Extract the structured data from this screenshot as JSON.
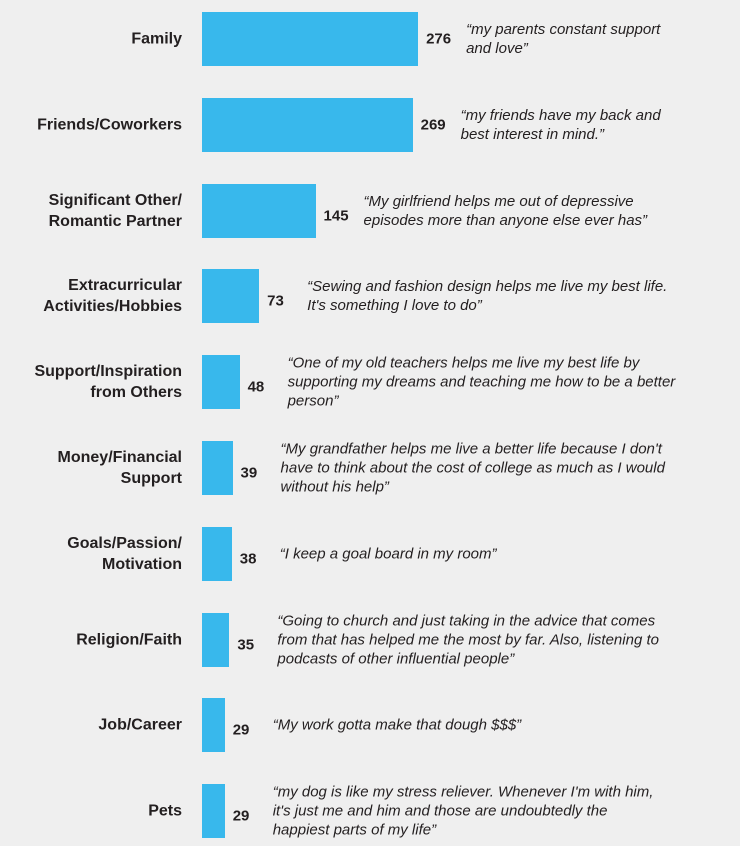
{
  "chart_data": {
    "type": "bar",
    "orientation": "horizontal",
    "color": "#38b8ec",
    "categories": [
      "Family",
      "Friends/Coworkers",
      "Significant Other/\nRomantic Partner",
      "Extracurricular\nActivities/Hobbies",
      "Support/Inspiration\nfrom Others",
      "Money/Financial\nSupport",
      "Goals/Passion/\nMotivation",
      "Religion/Faith",
      "Job/Career",
      "Pets"
    ],
    "values": [
      276,
      269,
      145,
      73,
      48,
      39,
      38,
      35,
      29,
      29
    ],
    "annotations": [
      "“my parents constant support\nand love”",
      "“my friends have my back and\nbest interest in mind.”",
      "“My girlfriend helps me out of depressive\nepisodes more than anyone else ever has”",
      "“Sewing and fashion design helps me live my best life.\nIt's something I love to do”",
      "“One of my old teachers helps me live my best life by\nsupporting my dreams and teaching me how to be a better\nperson”",
      "“My grandfather helps me live a better life because I don't\nhave to think about the cost of college as much as I would\nwithout his help”",
      "“I keep a goal board in my room”",
      "“Going to church and just taking in the advice that comes\nfrom that has helped me the most by far. Also, listening to\npodcasts of other influential people”",
      "“My work gotta make that dough $$$”",
      "“my dog is like my stress reliever. Whenever I'm with him,\nit's just me and him and those are undoubtedly the\nhappiest parts of my life”"
    ]
  }
}
